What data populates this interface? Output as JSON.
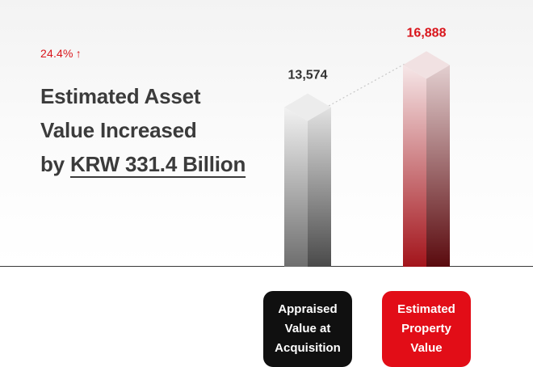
{
  "summary": {
    "change_pct": "24.4%",
    "change_arrow": "↑",
    "headline_line1": "Estimated Asset",
    "headline_line2": "Value Increased",
    "headline_line3_prefix": "by ",
    "headline_line3_amount": "KRW 331.4 Billion"
  },
  "chart_data": {
    "type": "bar",
    "categories": [
      "Appraised Value at Acquisition",
      "Estimated Property Value"
    ],
    "values": [
      13574,
      16888
    ],
    "data_labels": [
      "13,574",
      "16,888"
    ],
    "title": "",
    "xlabel": "",
    "ylabel": "",
    "ylim": [
      0,
      19000
    ],
    "legend": "none",
    "grid": false,
    "colors": {
      "first": "#5a5a5a",
      "second": "#b01218",
      "accent_text": "#d9161c"
    }
  }
}
